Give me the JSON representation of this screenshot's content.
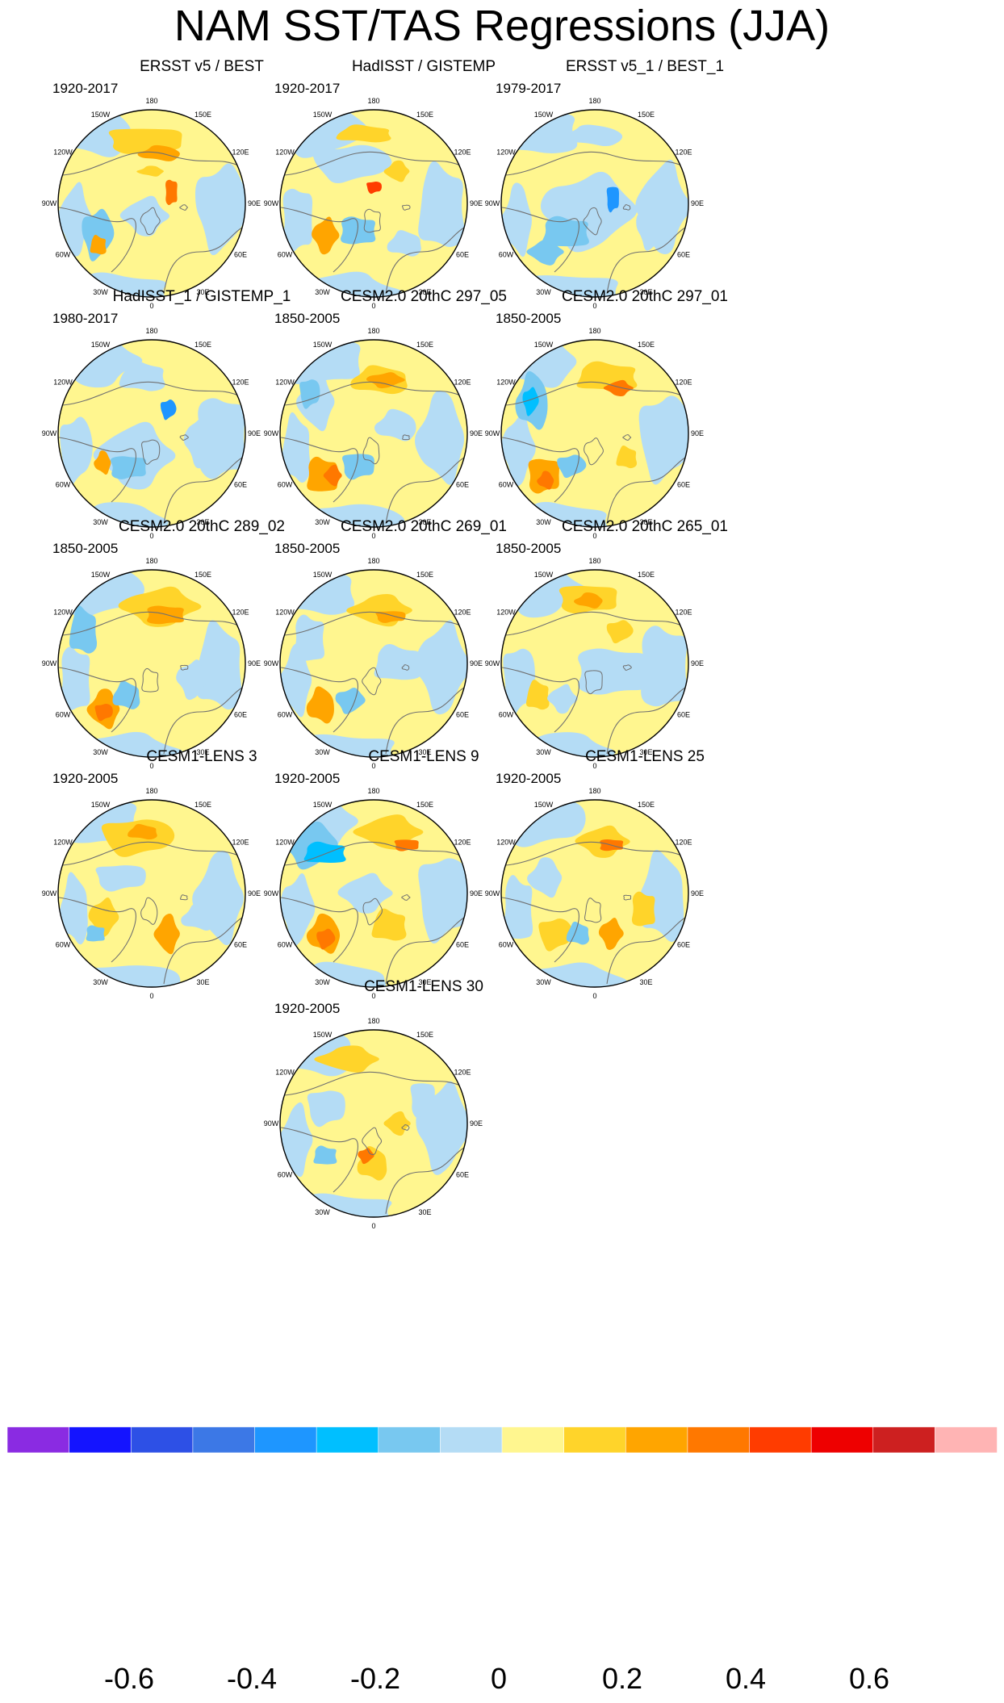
{
  "title": "NAM SST/TAS Regressions (JJA)",
  "longitude_labels": [
    "180",
    "150E",
    "120E",
    "90E",
    "60E",
    "30E",
    "0",
    "30W",
    "60W",
    "90W",
    "120W",
    "150W"
  ],
  "panels": [
    {
      "title": "ERSST v5 / BEST",
      "period": "1920-2017"
    },
    {
      "title": "HadISST / GISTEMP",
      "period": "1920-2017"
    },
    {
      "title": "ERSST v5_1 / BEST_1",
      "period": "1979-2017"
    },
    {
      "title": "HadISST_1 / GISTEMP_1",
      "period": "1980-2017"
    },
    {
      "title": "CESM2.0 20thC 297_05",
      "period": "1850-2005"
    },
    {
      "title": "CESM2.0 20thC 297_01",
      "period": "1850-2005"
    },
    {
      "title": "CESM2.0 20thC 289_02",
      "period": "1850-2005"
    },
    {
      "title": "CESM2.0 20thC 269_01",
      "period": "1850-2005"
    },
    {
      "title": "CESM2.0 20thC 265_01",
      "period": "1850-2005"
    },
    {
      "title": "CESM1-LENS 3",
      "period": "1920-2005"
    },
    {
      "title": "CESM1-LENS 9",
      "period": "1920-2005"
    },
    {
      "title": "CESM1-LENS 25",
      "period": "1920-2005"
    },
    {
      "title": "CESM1-LENS 30",
      "period": "1920-2005"
    }
  ],
  "colorbar": {
    "colors": [
      "#8a2be2",
      "#1414ff",
      "#2d50e6",
      "#3c78e6",
      "#1e96ff",
      "#00bfff",
      "#78c8f0",
      "#b4dcf5",
      "#fff68f",
      "#ffd42a",
      "#ffa500",
      "#ff7800",
      "#ff3c00",
      "#ee0000",
      "#cd2020",
      "#ffb4b4"
    ],
    "labels": [
      "-0.6",
      "-0.4",
      "-0.2",
      "0",
      "0.2",
      "0.4",
      "0.6"
    ]
  },
  "colors": {
    "ocean_zero_neg": "#b4dcf5",
    "land_zero_pos": "#fff68f",
    "coast": "#707070"
  }
}
